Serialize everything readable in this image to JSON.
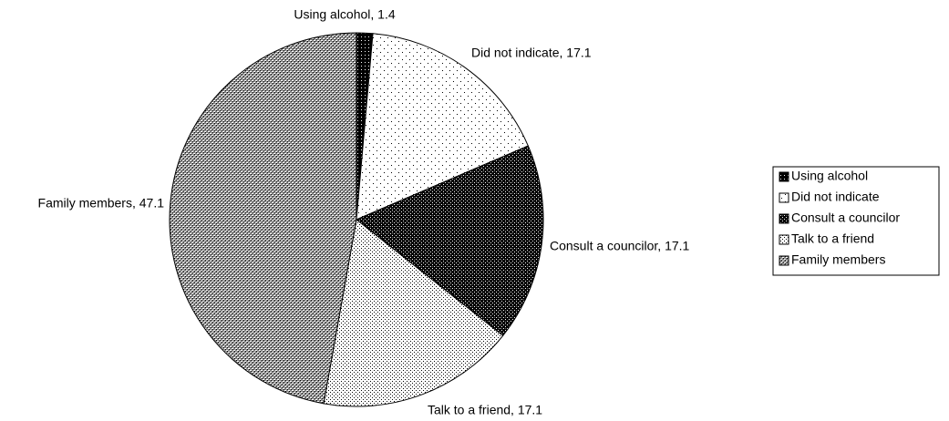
{
  "chart_data": {
    "type": "pie",
    "categories": [
      "Using alcohol",
      "Did not indicate",
      "Consult a councilor",
      "Talk to a friend",
      "Family members"
    ],
    "values": [
      1.4,
      17.1,
      17.1,
      17.1,
      47.1
    ],
    "value_labels": [
      "Using alcohol, 1.4",
      "Did not indicate, 17.1",
      "Consult a councilor, 17.1",
      "Talk to a friend, 17.1",
      "Family members, 47.1"
    ],
    "legend": "right"
  }
}
